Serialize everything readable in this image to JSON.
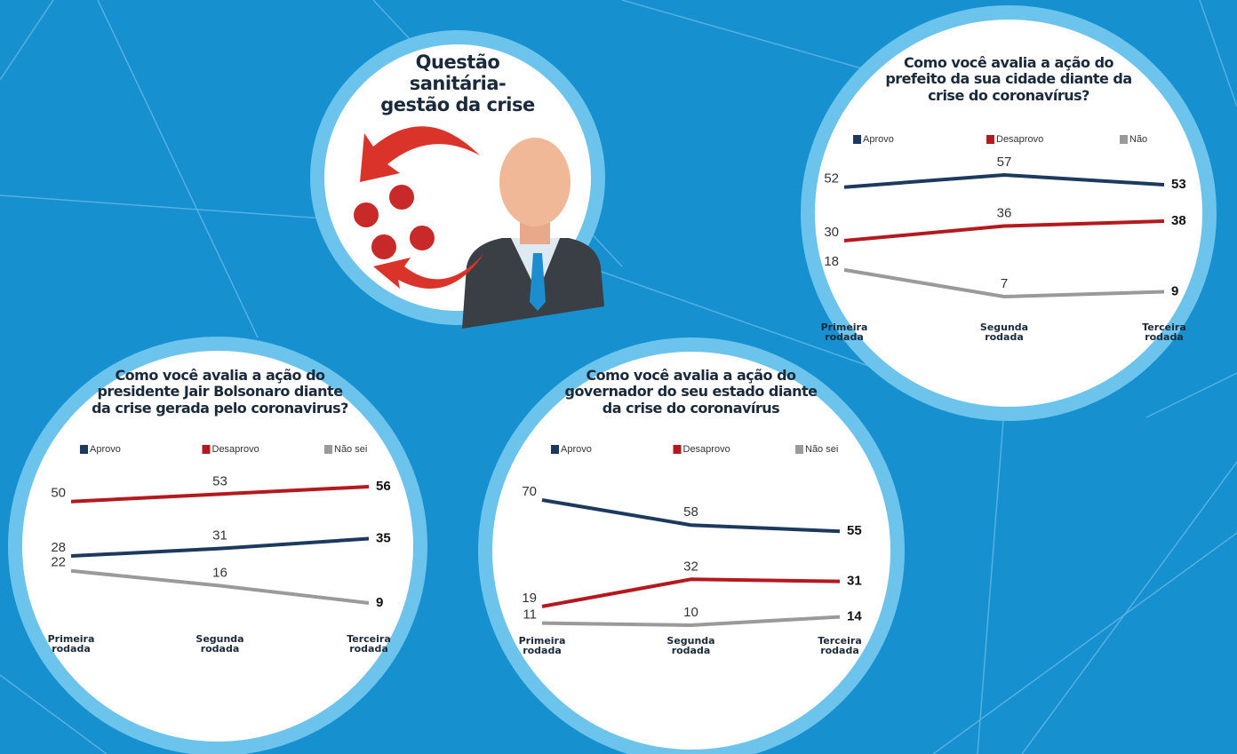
{
  "title": "Questão sanitária-gestão da crise",
  "chart_data": [
    {
      "type": "line",
      "title": "Como você avalia a ação do prefeito da sua cidade diante da crise do coronavírus?",
      "categories": [
        "Primeira rodada",
        "Segunda rodada",
        "Terceira rodada"
      ],
      "series": [
        {
          "name": "Aprovo",
          "color": "#1c3a5e",
          "values": [
            52,
            57,
            53
          ]
        },
        {
          "name": "Desaprovo",
          "color": "#b3191e",
          "values": [
            30,
            36,
            38
          ]
        },
        {
          "name": "Não",
          "color": "#9a9a9a",
          "values": [
            18,
            7,
            9
          ]
        }
      ]
    },
    {
      "type": "line",
      "title": "Como você avalia a ação do presidente Jair Bolsonaro diante da crise gerada pelo coronavirus?",
      "categories": [
        "Primeira rodada",
        "Segunda rodada",
        "Terceira rodada"
      ],
      "series": [
        {
          "name": "Aprovo",
          "color": "#1c3a5e",
          "values": [
            28,
            31,
            35
          ]
        },
        {
          "name": "Desaprovo",
          "color": "#b3191e",
          "values": [
            50,
            53,
            56
          ]
        },
        {
          "name": "Não sei",
          "color": "#9a9a9a",
          "values": [
            22,
            16,
            9
          ]
        }
      ]
    },
    {
      "type": "line",
      "title": "Como você avalia a ação do governador do seu estado diante da crise do coronavírus",
      "categories": [
        "Primeira rodada",
        "Segunda rodada",
        "Terceira rodada"
      ],
      "series": [
        {
          "name": "Aprovo",
          "color": "#1c3a5e",
          "values": [
            70,
            58,
            55
          ]
        },
        {
          "name": "Desaprovo",
          "color": "#b3191e",
          "values": [
            19,
            32,
            31
          ]
        },
        {
          "name": "Não sei",
          "color": "#9a9a9a",
          "values": [
            11,
            10,
            14
          ]
        }
      ]
    }
  ]
}
